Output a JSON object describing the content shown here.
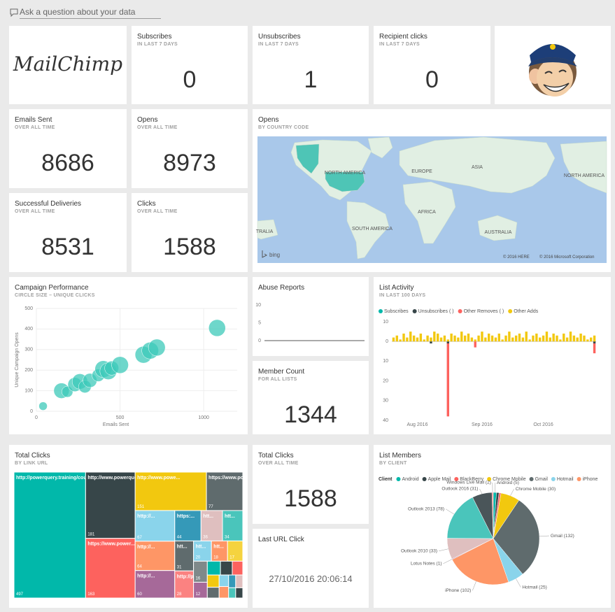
{
  "search": {
    "placeholder": "Ask a question about your data"
  },
  "logo": {
    "text": "MailChimp"
  },
  "cards": [
    {
      "title": "Subscribes",
      "subtitle": "IN LAST 7 DAYS",
      "value": 0
    },
    {
      "title": "Unsubscribes",
      "subtitle": "IN LAST 7 DAYS",
      "value": 1
    },
    {
      "title": "Recipient clicks",
      "subtitle": "IN LAST 7 DAYS",
      "value": 0
    },
    {
      "title": "Emails Sent",
      "subtitle": "OVER ALL TIME",
      "value": 8686
    },
    {
      "title": "Opens",
      "subtitle": "OVER ALL TIME",
      "value": 8973
    },
    {
      "title": "Successful Deliveries",
      "subtitle": "OVER ALL TIME",
      "value": 8531
    },
    {
      "title": "Clicks",
      "subtitle": "OVER ALL TIME",
      "value": 1588
    },
    {
      "title": "Member Count",
      "subtitle": "FOR ALL LISTS",
      "value": 1344
    },
    {
      "title": "Total Clicks",
      "subtitle": "OVER ALL TIME",
      "value": 1588
    },
    {
      "title": "Last URL Click",
      "value": "27/10/2016 20:06:14"
    }
  ],
  "map": {
    "title": "Opens",
    "subtitle": "BY COUNTRY CODE",
    "labels": [
      "NORTH AMERICA",
      "EUROPE",
      "ASIA",
      "AFRICA",
      "SOUTH AMERICA",
      "AUSTRALIA",
      "NORTH AMERICA",
      "TRALIA"
    ],
    "brand": "bing",
    "copyright": [
      "© 2016 HERE",
      "© 2016 Microsoft Corporation"
    ]
  },
  "chart_data": [
    {
      "type": "scatter",
      "title": "Campaign Performance",
      "subtitle": "CIRCLE SIZE – UNIQUE CLICKS",
      "xlabel": "Emails Sent",
      "ylabel": "Unique Campaign Opens",
      "color": "#3ec9b9",
      "x": [
        40,
        150,
        185,
        230,
        260,
        290,
        320,
        370,
        400,
        430,
        450,
        500,
        640,
        680,
        720,
        1080
      ],
      "values": [
        25,
        100,
        95,
        130,
        145,
        120,
        150,
        175,
        205,
        195,
        210,
        225,
        275,
        295,
        310,
        405
      ],
      "sizes": [
        25,
        84,
        44,
        70,
        84,
        56,
        70,
        56,
        100,
        100,
        70,
        100,
        100,
        100,
        100,
        100
      ],
      "xlim": [
        0,
        1200
      ],
      "xticks": [
        0,
        500,
        1000
      ],
      "ylim": [
        0,
        500
      ],
      "yticks": [
        0,
        100,
        200,
        300,
        400,
        500
      ],
      "grid": true
    },
    {
      "type": "line",
      "title": "Abuse Reports",
      "color": "#555555",
      "values": [
        0,
        0,
        0,
        0,
        0,
        0,
        0,
        0,
        0,
        0
      ],
      "ylim": [
        0,
        10
      ],
      "yticks": [
        0,
        5,
        10
      ],
      "grid": false
    },
    {
      "type": "bar",
      "title": "List Activity",
      "subtitle": "IN LAST 100 DAYS",
      "categories": [
        null,
        null,
        null,
        null,
        null,
        null,
        null,
        "Aug 2016",
        null,
        null,
        null,
        null,
        null,
        null,
        null,
        null,
        null,
        null,
        null,
        null,
        null,
        null,
        null,
        null,
        null,
        null,
        "Sep 2016",
        null,
        null,
        null,
        null,
        null,
        null,
        null,
        null,
        null,
        null,
        null,
        null,
        null,
        null,
        null,
        null,
        null,
        "Oct 2016",
        null,
        null,
        null,
        null,
        null,
        null,
        null,
        null,
        null,
        null,
        null,
        null,
        null,
        null,
        null
      ],
      "series": [
        {
          "name": "Subscribes",
          "color": "#01b8aa",
          "values": [
            0,
            0,
            0,
            0,
            0,
            0,
            0,
            0,
            0,
            0,
            0,
            0,
            0,
            0,
            0,
            0,
            0,
            0,
            0,
            0,
            0,
            0,
            0,
            0,
            0,
            0,
            0,
            0,
            0,
            0,
            0,
            0,
            0,
            0,
            0,
            0,
            0,
            0,
            0,
            0,
            0,
            0,
            0,
            0,
            0,
            0,
            0,
            0,
            0,
            0,
            0,
            0,
            0,
            0,
            0,
            0,
            0,
            0,
            0,
            0
          ]
        },
        {
          "name": "Unsubscribes ( )",
          "color": "#374649",
          "values": [
            0,
            0,
            0,
            0,
            0,
            0,
            0,
            0,
            0,
            0,
            0,
            -1,
            0,
            0,
            0,
            0,
            -1,
            0,
            0,
            0,
            0,
            0,
            0,
            0,
            0,
            0,
            0,
            0,
            0,
            0,
            0,
            0,
            0,
            0,
            0,
            0,
            0,
            0,
            0,
            0,
            0,
            0,
            0,
            0,
            0,
            0,
            0,
            0,
            0,
            0,
            0,
            0,
            0,
            0,
            0,
            0,
            0,
            0,
            0,
            -1
          ]
        },
        {
          "name": "Other Removes ( )",
          "color": "#fd625e",
          "values": [
            0,
            0,
            0,
            0,
            0,
            0,
            0,
            0,
            0,
            0,
            0,
            0,
            0,
            0,
            0,
            0,
            -37,
            0,
            0,
            0,
            0,
            0,
            0,
            0,
            -3,
            0,
            0,
            0,
            0,
            0,
            0,
            0,
            0,
            0,
            0,
            0,
            0,
            0,
            0,
            0,
            0,
            0,
            0,
            0,
            0,
            0,
            0,
            0,
            0,
            0,
            0,
            0,
            0,
            0,
            0,
            0,
            0,
            0,
            0,
            -5
          ]
        },
        {
          "name": "Other Adds",
          "color": "#f2c80f",
          "values": [
            2,
            3,
            1,
            4,
            2,
            5,
            3,
            2,
            4,
            1,
            3,
            2,
            5,
            4,
            2,
            3,
            1,
            4,
            3,
            2,
            5,
            3,
            4,
            2,
            1,
            3,
            5,
            2,
            4,
            3,
            2,
            4,
            1,
            3,
            5,
            2,
            3,
            4,
            2,
            5,
            1,
            3,
            4,
            2,
            3,
            5,
            2,
            4,
            3,
            1,
            4,
            2,
            5,
            3,
            2,
            4,
            3,
            1,
            2,
            3
          ]
        }
      ],
      "ylim": [
        -40,
        10
      ],
      "yticks": [
        10,
        0,
        {
          "value": -10,
          "label": "10"
        },
        {
          "value": -20,
          "label": "20"
        },
        {
          "value": -30,
          "label": "30"
        },
        {
          "value": -40,
          "label": "40"
        }
      ],
      "grid": false
    },
    {
      "type": "treemap",
      "title": "Total Clicks",
      "subtitle": "BY LINK URL",
      "categories": [
        "http://powerquery.training/course",
        "http://www.powerquery.training/pa...",
        "https://www.power...",
        "http://www.powe...",
        "https://www.power...",
        "http://...",
        "http://...",
        "http://...",
        "https:...",
        "htt...",
        "htt...",
        "htt...",
        "http://p...",
        "htt...",
        "htt...",
        "http://w...",
        "http://w...",
        null,
        null,
        null,
        null,
        null,
        null,
        null,
        null,
        null,
        null,
        null,
        null
      ],
      "values": [
        497,
        181,
        163,
        151,
        77,
        67,
        64,
        60,
        44,
        36,
        34,
        31,
        28,
        20,
        18,
        17,
        16,
        12,
        10,
        9,
        8,
        8,
        7,
        6,
        6,
        5,
        5,
        4,
        4
      ],
      "colors": [
        "#01b8aa",
        "#374649",
        "#fd625e",
        "#f2c80f",
        "#5f6b6d",
        "#8ad4eb",
        "#fe9666",
        "#a66999",
        "#3599b8",
        "#dfbfbf",
        "#4ac5bb",
        "#5f6b6d",
        "#fb8281",
        "#8ad4eb",
        "#fe9666",
        "#f5d33f",
        "#7f898a",
        "#a66999",
        "#01b8aa",
        "#374649",
        "#fd625e",
        "#f2c80f",
        "#5f6b6d",
        "#8ad4eb",
        "#fe9666",
        "#3599b8",
        "#dfbfbf",
        "#4ac5bb",
        "#374649"
      ]
    },
    {
      "type": "pie",
      "title": "List Members",
      "subtitle": "BY CLIENT",
      "legend_title": "Client",
      "categories": [
        "Android",
        "Apple Mail",
        "BlackBerry",
        "Chrome Mobile",
        "Gmail",
        "Hotmail",
        "iPhone",
        "Lotus Notes",
        "Outlook 2010",
        "Outlook 2013",
        "Outlook 2016",
        "Windows Live Mail"
      ],
      "values": [
        5,
        4,
        3,
        30,
        132,
        25,
        102,
        1,
        33,
        78,
        31,
        2
      ],
      "value_labels": [
        "Android (5)",
        null,
        null,
        "Chrome Mobile (30)",
        "Gmail (132)",
        "Hotmail (25)",
        "iPhone (102)",
        "Lotus Notes (1)",
        "Outlook 2010 (33)",
        "Outlook 2013 (78)",
        "Outlook 2016 (31)",
        "Windows Live Mail (2)"
      ],
      "colors": [
        "#01b8aa",
        "#374649",
        "#fd625e",
        "#f2c80f",
        "#5f6b6d",
        "#8ad4eb",
        "#fe9666",
        "#a66999",
        "#dfbfbf",
        "#4ac5bb",
        "#4a5559",
        "#fb8281"
      ]
    }
  ]
}
